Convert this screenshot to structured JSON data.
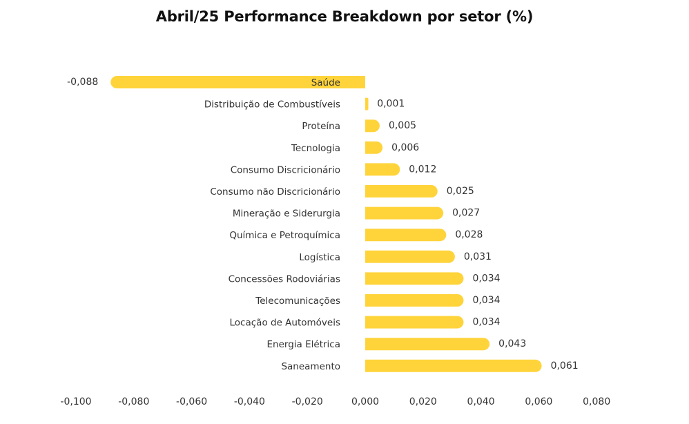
{
  "chart_data": {
    "type": "bar",
    "orientation": "horizontal",
    "title": "Abril/25 Performance Breakdown por setor (%)",
    "categories": [
      "Saúde",
      "Distribuição de Combustíveis",
      "Proteína",
      "Tecnologia",
      "Consumo Discricionário",
      "Consumo não Discricionário",
      "Mineração e Siderurgia",
      "Química e Petroquímica",
      "Logística",
      "Concessões Rodoviárias",
      "Telecomunicações",
      "Locação de Automóveis",
      "Energia Elétrica",
      "Saneamento"
    ],
    "values": [
      -0.088,
      0.001,
      0.005,
      0.006,
      0.012,
      0.025,
      0.027,
      0.028,
      0.031,
      0.034,
      0.034,
      0.034,
      0.043,
      0.061
    ],
    "value_labels": [
      "-0,088",
      "0,001",
      "0,005",
      "0,006",
      "0,012",
      "0,025",
      "0,027",
      "0,028",
      "0,031",
      "0,034",
      "0,034",
      "0,034",
      "0,043",
      "0,061"
    ],
    "xlim": [
      -0.1,
      0.08
    ],
    "x_ticks": [
      -0.1,
      -0.08,
      -0.06,
      -0.04,
      -0.02,
      0.0,
      0.02,
      0.04,
      0.06,
      0.08
    ],
    "x_tick_labels": [
      "-0,100",
      "-0,080",
      "-0,060",
      "-0,040",
      "-0,020",
      "0,000",
      "0,020",
      "0,040",
      "0,060",
      "0,080"
    ],
    "xlabel": "",
    "ylabel": "",
    "grid": false,
    "bar_color": "#FFD43B"
  }
}
